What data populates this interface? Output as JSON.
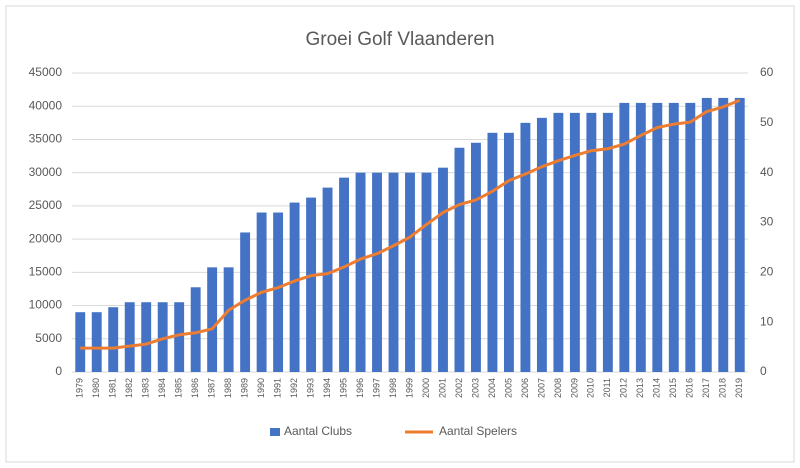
{
  "chart_data": {
    "type": "bar-line",
    "title": "Groei Golf Vlaanderen",
    "categories": [
      "1979",
      "1980",
      "1981",
      "1982",
      "1983",
      "1984",
      "1985",
      "1986",
      "1987",
      "1988",
      "1989",
      "1990",
      "1991",
      "1992",
      "1993",
      "1994",
      "1995",
      "1996",
      "1997",
      "1998",
      "1999",
      "2000",
      "2001",
      "2002",
      "2003",
      "2004",
      "2005",
      "2006",
      "2007",
      "2008",
      "2009",
      "2010",
      "2011",
      "2012",
      "2013",
      "2014",
      "2015",
      "2016",
      "2017",
      "2018",
      "2019"
    ],
    "series": [
      {
        "name": "Aantal Clubs",
        "type": "bar",
        "axis": "y2",
        "color": "#4472c4",
        "values": [
          12,
          12,
          13,
          14,
          14,
          14,
          14,
          17,
          21,
          21,
          28,
          32,
          32,
          34,
          35,
          37,
          39,
          40,
          40,
          40,
          40,
          40,
          41,
          45,
          46,
          48,
          48,
          50,
          51,
          52,
          52,
          52,
          52,
          54,
          54,
          54,
          54,
          54,
          55,
          55,
          55
        ]
      },
      {
        "name": "Aantal Spelers",
        "type": "line",
        "color": "#ed7d31",
        "values": [
          3600,
          3600,
          3600,
          3900,
          4200,
          5000,
          5600,
          5900,
          6500,
          9300,
          10800,
          12000,
          12700,
          13700,
          14500,
          14800,
          15800,
          17000,
          17800,
          19000,
          20300,
          22200,
          24000,
          25200,
          25900,
          27200,
          28800,
          29800,
          30900,
          31800,
          32600,
          33300,
          33600,
          34300,
          35600,
          36800,
          37300,
          37600,
          39200,
          39900,
          40900
        ]
      }
    ],
    "ylim": [
      0,
      45000
    ],
    "yticks": [
      0,
      5000,
      10000,
      15000,
      20000,
      25000,
      30000,
      35000,
      40000,
      45000
    ],
    "y2lim": [
      0,
      60
    ],
    "y2ticks": [
      0,
      10,
      20,
      30,
      40,
      50,
      60
    ],
    "grid": true,
    "legend": "bottom"
  }
}
